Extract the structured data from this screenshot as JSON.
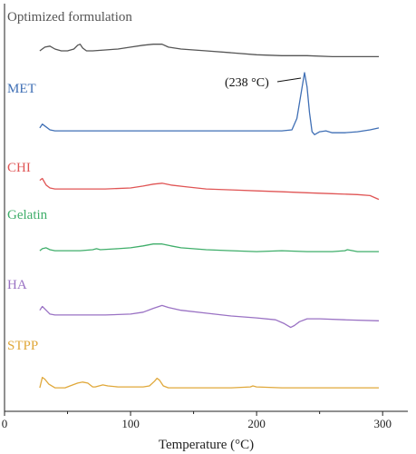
{
  "chart_data": {
    "type": "line",
    "title": "",
    "xlabel": "Temperature (°C)",
    "ylabel": "",
    "xlim": [
      0,
      320
    ],
    "x_ticks": [
      0,
      100,
      200,
      300
    ],
    "grid": false,
    "legend": "inline-labels",
    "annotation": {
      "text": "(238 °C)",
      "series": "MET",
      "x": 238
    },
    "series": [
      {
        "name": "Optimized formulation",
        "color": "#555555",
        "points": [
          [
            28,
            -1
          ],
          [
            32,
            3
          ],
          [
            36,
            4
          ],
          [
            40,
            1
          ],
          [
            45,
            -1
          ],
          [
            50,
            -1
          ],
          [
            55,
            1
          ],
          [
            58,
            5
          ],
          [
            60,
            6
          ],
          [
            62,
            2
          ],
          [
            65,
            -1
          ],
          [
            70,
            -1
          ],
          [
            80,
            0
          ],
          [
            90,
            1
          ],
          [
            100,
            3
          ],
          [
            110,
            5
          ],
          [
            118,
            6
          ],
          [
            125,
            6
          ],
          [
            130,
            3
          ],
          [
            140,
            1
          ],
          [
            160,
            -1
          ],
          [
            180,
            -3
          ],
          [
            200,
            -5
          ],
          [
            220,
            -6
          ],
          [
            240,
            -6
          ],
          [
            260,
            -7
          ],
          [
            280,
            -7
          ],
          [
            297,
            -7
          ]
        ]
      },
      {
        "name": "MET",
        "color": "#3f6fb5",
        "points": [
          [
            28,
            2
          ],
          [
            30,
            6
          ],
          [
            33,
            3
          ],
          [
            36,
            0
          ],
          [
            40,
            -1
          ],
          [
            60,
            -1
          ],
          [
            100,
            -1
          ],
          [
            150,
            -1
          ],
          [
            200,
            -1
          ],
          [
            220,
            -1
          ],
          [
            228,
            0
          ],
          [
            232,
            12
          ],
          [
            235,
            36
          ],
          [
            238,
            60
          ],
          [
            240,
            45
          ],
          [
            242,
            18
          ],
          [
            244,
            -2
          ],
          [
            246,
            -5
          ],
          [
            250,
            -2
          ],
          [
            255,
            -1
          ],
          [
            260,
            -3
          ],
          [
            270,
            -3
          ],
          [
            280,
            -2
          ],
          [
            290,
            0
          ],
          [
            297,
            2
          ]
        ]
      },
      {
        "name": "CHI",
        "color": "#e05555",
        "points": [
          [
            28,
            8
          ],
          [
            30,
            10
          ],
          [
            33,
            3
          ],
          [
            36,
            0
          ],
          [
            40,
            -1
          ],
          [
            60,
            -1
          ],
          [
            80,
            -1
          ],
          [
            100,
            0
          ],
          [
            110,
            2
          ],
          [
            118,
            4
          ],
          [
            125,
            5
          ],
          [
            132,
            3
          ],
          [
            145,
            1
          ],
          [
            160,
            -1
          ],
          [
            180,
            -2
          ],
          [
            200,
            -3
          ],
          [
            220,
            -4
          ],
          [
            240,
            -5
          ],
          [
            260,
            -6
          ],
          [
            280,
            -7
          ],
          [
            290,
            -8
          ],
          [
            297,
            -12
          ]
        ]
      },
      {
        "name": "Gelatin",
        "color": "#3fae6a",
        "points": [
          [
            28,
            -1
          ],
          [
            30,
            1
          ],
          [
            33,
            2
          ],
          [
            36,
            0
          ],
          [
            40,
            -1
          ],
          [
            60,
            -1
          ],
          [
            70,
            0
          ],
          [
            73,
            1
          ],
          [
            76,
            0
          ],
          [
            90,
            1
          ],
          [
            100,
            2
          ],
          [
            110,
            4
          ],
          [
            118,
            6
          ],
          [
            125,
            6
          ],
          [
            132,
            4
          ],
          [
            140,
            2
          ],
          [
            160,
            0
          ],
          [
            180,
            -1
          ],
          [
            200,
            -2
          ],
          [
            220,
            -1
          ],
          [
            240,
            -2
          ],
          [
            260,
            -2
          ],
          [
            270,
            -1
          ],
          [
            272,
            0
          ],
          [
            280,
            -2
          ],
          [
            297,
            -2
          ]
        ]
      },
      {
        "name": "HA",
        "color": "#9a72c4",
        "points": [
          [
            28,
            6
          ],
          [
            30,
            10
          ],
          [
            33,
            6
          ],
          [
            36,
            2
          ],
          [
            40,
            1
          ],
          [
            60,
            1
          ],
          [
            80,
            1
          ],
          [
            100,
            2
          ],
          [
            110,
            4
          ],
          [
            118,
            8
          ],
          [
            125,
            11
          ],
          [
            130,
            9
          ],
          [
            140,
            6
          ],
          [
            160,
            3
          ],
          [
            180,
            0
          ],
          [
            200,
            -2
          ],
          [
            215,
            -4
          ],
          [
            222,
            -8
          ],
          [
            227,
            -12
          ],
          [
            230,
            -10
          ],
          [
            234,
            -6
          ],
          [
            240,
            -3
          ],
          [
            250,
            -3
          ],
          [
            270,
            -4
          ],
          [
            297,
            -5
          ]
        ]
      },
      {
        "name": "STPP",
        "color": "#e0a83a",
        "points": [
          [
            28,
            -2
          ],
          [
            30,
            9
          ],
          [
            32,
            7
          ],
          [
            35,
            2
          ],
          [
            40,
            -2
          ],
          [
            48,
            -2
          ],
          [
            52,
            0
          ],
          [
            58,
            3
          ],
          [
            62,
            4
          ],
          [
            66,
            3
          ],
          [
            70,
            -1
          ],
          [
            72,
            -1
          ],
          [
            75,
            0
          ],
          [
            78,
            1
          ],
          [
            82,
            0
          ],
          [
            90,
            -1
          ],
          [
            100,
            -1
          ],
          [
            110,
            -1
          ],
          [
            115,
            0
          ],
          [
            119,
            5
          ],
          [
            121,
            8
          ],
          [
            123,
            6
          ],
          [
            126,
            0
          ],
          [
            130,
            -2
          ],
          [
            150,
            -2
          ],
          [
            180,
            -2
          ],
          [
            195,
            -1
          ],
          [
            197,
            0
          ],
          [
            200,
            -1
          ],
          [
            220,
            -2
          ],
          [
            250,
            -2
          ],
          [
            280,
            -2
          ],
          [
            297,
            -2
          ]
        ]
      }
    ]
  }
}
